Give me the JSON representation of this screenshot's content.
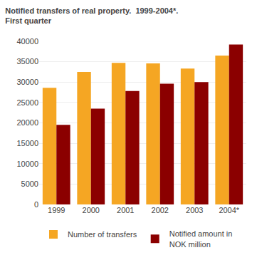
{
  "chart_data": {
    "type": "bar",
    "title": "Notified transfers of real property.  1999-2004*.",
    "subtitle": "First quarter",
    "categories": [
      "1999",
      "2000",
      "2001",
      "2002",
      "2003",
      "2004*"
    ],
    "series": [
      {
        "name": "Number of transfers",
        "color": "#F5A623",
        "values": [
          28600,
          32500,
          34700,
          34600,
          33300,
          36500
        ]
      },
      {
        "name": "Notified amount in\nNOK million",
        "color": "#8B0000",
        "values": [
          19500,
          23500,
          27800,
          29600,
          30000,
          39200
        ]
      }
    ],
    "ylim": [
      0,
      40000
    ],
    "yticks": [
      0,
      5000,
      10000,
      15000,
      20000,
      25000,
      30000,
      35000,
      40000
    ],
    "grid": true,
    "legend": "lower left"
  }
}
